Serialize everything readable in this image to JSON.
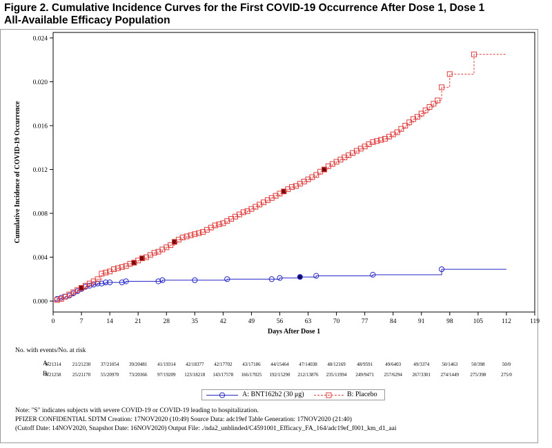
{
  "figure": {
    "title_line1": "Figure 2. Cumulative Incidence Curves for the First COVID-19 Occurrence After Dose 1, Dose 1",
    "title_line2": "All-Available Efficacy Population"
  },
  "chart_data": {
    "type": "line",
    "step": true,
    "xlabel": "Days After Dose 1",
    "ylabel": "Cumulative Incidence of COVID-19 Occurrence",
    "xlim": [
      0,
      119
    ],
    "ylim": [
      -0.001,
      0.0245
    ],
    "xticks": [
      0,
      7,
      14,
      21,
      28,
      35,
      42,
      49,
      56,
      63,
      70,
      77,
      84,
      91,
      98,
      105,
      112,
      119
    ],
    "yticks": [
      "0.000",
      "0.004",
      "0.008",
      "0.012",
      "0.016",
      "0.020",
      "0.024"
    ],
    "ytick_values": [
      0,
      0.004,
      0.008,
      0.012,
      0.016,
      0.02,
      0.024
    ],
    "legend_position": "bottom",
    "series": [
      {
        "name": "A: BNT162b2 (30 μg)",
        "color": "#2323c8",
        "marker": "circle",
        "x": [
          0,
          1,
          2,
          3,
          4,
          5,
          6,
          7,
          8,
          9,
          10,
          11,
          12,
          13,
          14,
          17,
          18,
          26,
          27,
          35,
          43,
          54,
          56,
          61,
          65,
          79,
          96,
          112
        ],
        "y": [
          0,
          0.0002,
          0.0003,
          0.0004,
          0.0005,
          0.0007,
          0.0009,
          0.0011,
          0.0013,
          0.0014,
          0.0015,
          0.0016,
          0.0016,
          0.0017,
          0.0017,
          0.0017,
          0.0018,
          0.0018,
          0.0019,
          0.0019,
          0.002,
          0.002,
          0.0021,
          0.0022,
          0.0023,
          0.0024,
          0.0029,
          0.0029
        ],
        "severe_x": [
          61
        ]
      },
      {
        "name": "B: Placebo",
        "color": "#e03c3c",
        "marker": "square",
        "x": [
          0,
          1,
          2,
          3,
          4,
          5,
          6,
          7,
          8,
          9,
          10,
          11,
          12,
          13,
          14,
          15,
          16,
          17,
          18,
          19,
          20,
          21,
          22,
          23,
          24,
          25,
          26,
          27,
          28,
          29,
          30,
          31,
          32,
          33,
          34,
          35,
          36,
          37,
          38,
          39,
          40,
          41,
          42,
          43,
          44,
          45,
          46,
          47,
          48,
          49,
          50,
          51,
          52,
          53,
          54,
          55,
          56,
          57,
          58,
          59,
          60,
          61,
          62,
          63,
          64,
          65,
          66,
          67,
          68,
          69,
          70,
          71,
          72,
          73,
          74,
          75,
          76,
          77,
          78,
          79,
          80,
          81,
          82,
          83,
          84,
          85,
          86,
          87,
          88,
          89,
          90,
          91,
          92,
          93,
          94,
          95,
          96,
          98,
          104,
          112
        ],
        "y": [
          0,
          0.0001,
          0.0002,
          0.0004,
          0.0006,
          0.0008,
          0.001,
          0.0012,
          0.0014,
          0.0016,
          0.0018,
          0.002,
          0.0025,
          0.0026,
          0.0027,
          0.0029,
          0.003,
          0.0031,
          0.0032,
          0.0034,
          0.0035,
          0.0037,
          0.0039,
          0.004,
          0.0042,
          0.0044,
          0.0045,
          0.0047,
          0.0049,
          0.0051,
          0.0054,
          0.0056,
          0.0058,
          0.0059,
          0.006,
          0.0061,
          0.0062,
          0.0063,
          0.0065,
          0.0067,
          0.0069,
          0.007,
          0.0071,
          0.0073,
          0.0075,
          0.0077,
          0.0079,
          0.0081,
          0.0082,
          0.0084,
          0.0086,
          0.0088,
          0.009,
          0.0092,
          0.0094,
          0.0096,
          0.0098,
          0.01,
          0.0102,
          0.0104,
          0.0105,
          0.0107,
          0.0109,
          0.0111,
          0.0113,
          0.0115,
          0.0118,
          0.012,
          0.0123,
          0.0125,
          0.0127,
          0.0129,
          0.0131,
          0.0133,
          0.0135,
          0.0137,
          0.0139,
          0.0141,
          0.0143,
          0.0145,
          0.0146,
          0.0147,
          0.0148,
          0.015,
          0.0152,
          0.0154,
          0.0157,
          0.016,
          0.0163,
          0.0166,
          0.0168,
          0.0171,
          0.0174,
          0.0177,
          0.018,
          0.0183,
          0.0195,
          0.0207,
          0.0225,
          0.0225
        ],
        "severe_x": [
          7,
          20,
          22,
          30,
          57,
          67
        ]
      }
    ]
  },
  "risk_table": {
    "header": "No. with events/No. at risk",
    "days": [
      0,
      7,
      14,
      21,
      28,
      35,
      42,
      49,
      56,
      63,
      70,
      77,
      84,
      91,
      98,
      105,
      112
    ],
    "rows": [
      {
        "arm": "A:",
        "values": [
          "0/21314",
          "21/21230",
          "37/21054",
          "39/20481",
          "41/19314",
          "42/18377",
          "42/17702",
          "43/17186",
          "44/15464",
          "47/14038",
          "48/12169",
          "48/9591",
          "49/6403",
          "49/3374",
          "50/1463",
          "50/398",
          "50/0"
        ]
      },
      {
        "arm": "B:",
        "values": [
          "0/21258",
          "25/21170",
          "55/20970",
          "73/20366",
          "97/19209",
          "123/18218",
          "143/17578",
          "166/17025",
          "192/15290",
          "212/13876",
          "235/11994",
          "249/9471",
          "257/6294",
          "267/3301",
          "274/1449",
          "275/398",
          "275/0"
        ]
      }
    ]
  },
  "legend": {
    "a_label": "A: BNT162b2 (30 μg)",
    "b_label": "B: Placebo"
  },
  "footnotes": {
    "note": "Note: \"S\" indicates subjects with severe COVID-19 or COVID-19 leading to hospitalization.",
    "line1": "PFIZER CONFIDENTIAL  SDTM Creation: 17NOV2020 (10:49)  Source Data: adc19ef  Table Generation: 17NOV2020 (21:40)",
    "line2": "(Cutoff Date: 14NOV2020, Snapshot Date: 16NOV2020) Output File: ./nda2_unblinded/C4591001_Efficacy_FA_164/adc19ef_f001_km_d1_aai"
  }
}
